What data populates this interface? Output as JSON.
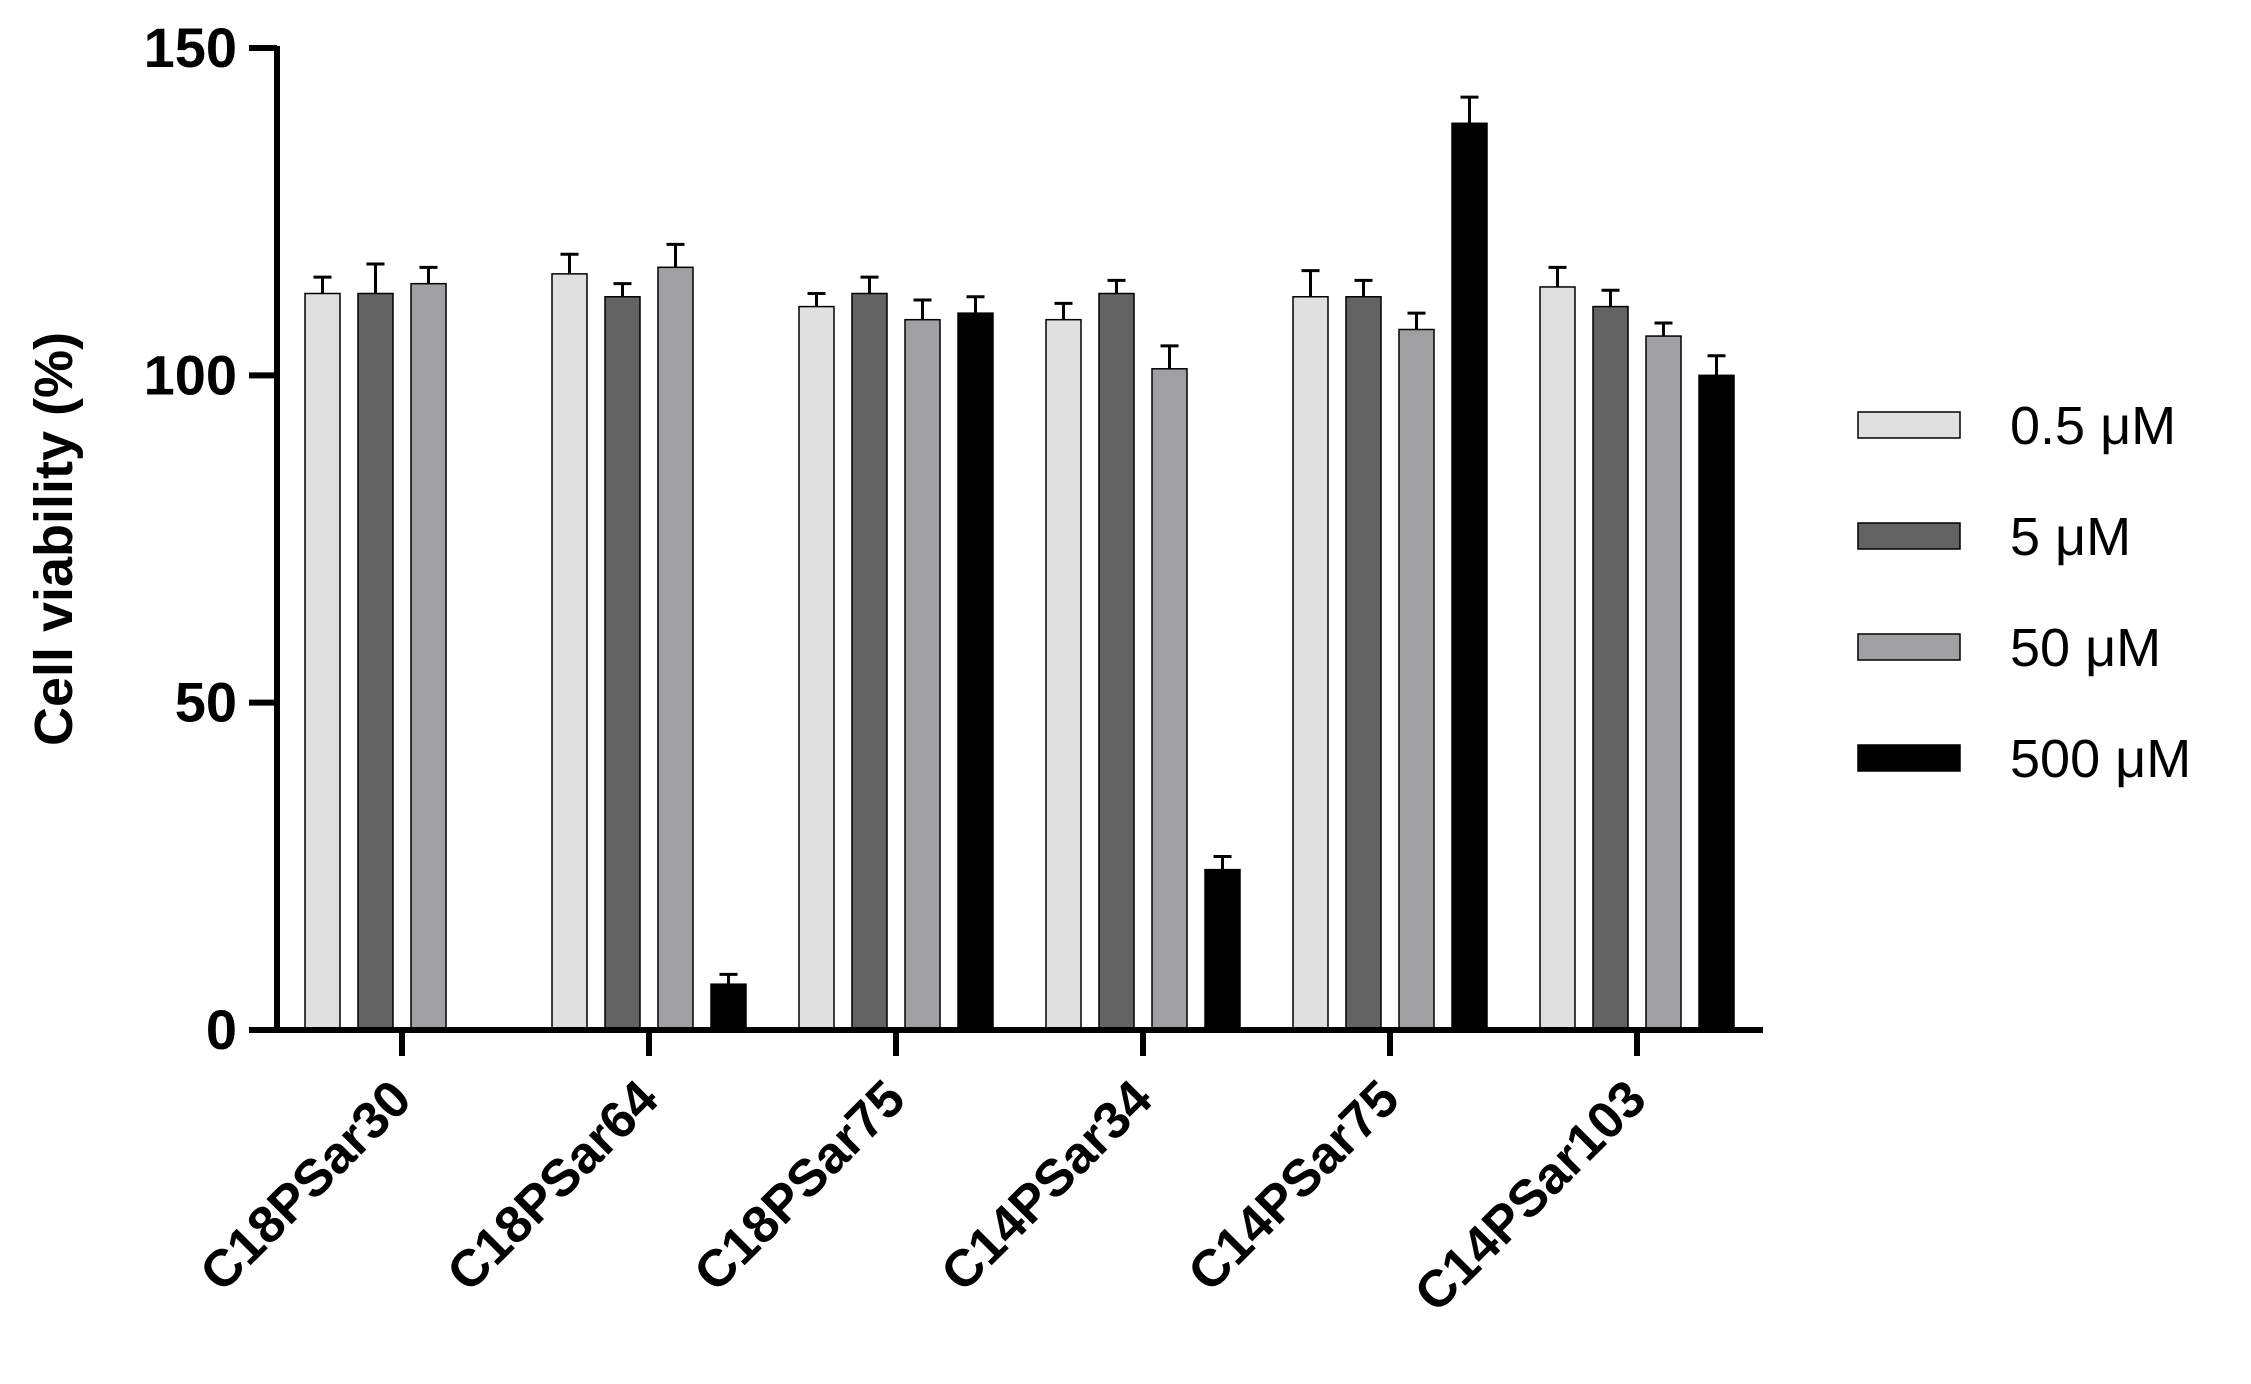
{
  "chart_data": {
    "type": "bar",
    "title": "",
    "xlabel": "",
    "ylabel": "Cell viability (%)",
    "ylim": [
      0,
      150
    ],
    "yticks": [
      0,
      50,
      100,
      150
    ],
    "grid": false,
    "legend_position": "right",
    "categories": [
      "C18PSar30",
      "C18PSar64",
      "C18PSar75",
      "C14PSar34",
      "C14PSar75",
      "C14PSar103"
    ],
    "series": [
      {
        "name": "0.5 μM",
        "color": "#e0e0e0",
        "values": [
          112.5,
          115.5,
          110.5,
          108.5,
          112,
          113.5
        ],
        "errors": [
          2.5,
          3,
          2,
          2.5,
          4,
          3
        ]
      },
      {
        "name": "5 μM",
        "color": "#636363",
        "values": [
          112.5,
          112,
          112.5,
          112.5,
          112,
          110.5
        ],
        "errors": [
          4.5,
          2,
          2.5,
          2,
          2.5,
          2.5
        ]
      },
      {
        "name": "50 μM",
        "color": "#a0a0a4",
        "values": [
          114,
          116.5,
          108.5,
          101,
          107,
          106
        ],
        "errors": [
          2.5,
          3.5,
          3,
          3.5,
          2.5,
          2
        ]
      },
      {
        "name": "500 μM",
        "color": "#000000",
        "values": [
          null,
          7,
          109.5,
          24.5,
          138.5,
          100
        ],
        "errors": [
          null,
          1.5,
          2.5,
          2,
          4,
          3
        ]
      }
    ]
  }
}
